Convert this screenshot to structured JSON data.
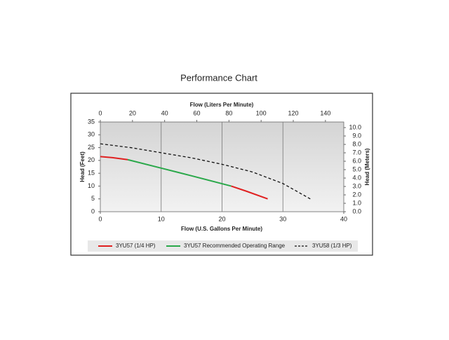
{
  "chart_data": {
    "type": "line",
    "title": "Performance Chart",
    "x_label": "Flow (U.S. Gallons Per Minute)",
    "x2_label": "Flow (Liters Per Minute)",
    "y_label": "Head (Feet)",
    "y2_label": "Head (Meters)",
    "xlim": [
      0,
      40
    ],
    "xticks": [
      0,
      10,
      20,
      30,
      40
    ],
    "x2lim": [
      0,
      151.4
    ],
    "x2ticks": [
      0,
      20,
      40,
      60,
      80,
      100,
      120,
      140
    ],
    "ylim": [
      0,
      35
    ],
    "yticks": [
      0,
      5,
      10,
      15,
      20,
      25,
      30,
      35
    ],
    "y2lim": [
      0,
      10.668
    ],
    "y2ticks": [
      {
        "value": 0,
        "label": "0.0"
      },
      {
        "value": 1,
        "label": "1.0"
      },
      {
        "value": 2,
        "label": "2.0"
      },
      {
        "value": 3,
        "label": "3.0"
      },
      {
        "value": 4,
        "label": "4.0"
      },
      {
        "value": 5,
        "label": "5.0"
      },
      {
        "value": 6,
        "label": "6.0"
      },
      {
        "value": 7,
        "label": "7.0"
      },
      {
        "value": 8,
        "label": "8.0"
      },
      {
        "value": 9,
        "label": "9.0"
      },
      {
        "value": 10,
        "label": "10.0"
      }
    ],
    "grid": true,
    "series": [
      {
        "name": "3YU57 (1/4 HP)",
        "color": "#e02020",
        "dash": false,
        "x": [
          0,
          2,
          4.5,
          10,
          15,
          21.5,
          24,
          27.5
        ],
        "values": [
          21.5,
          21.1,
          20.3,
          null,
          null,
          10,
          8,
          5
        ]
      },
      {
        "name": "3YU57 Recommended Operating Range",
        "color": "#2aa84a",
        "dash": false,
        "x": [
          0,
          2,
          4.5,
          10,
          15,
          21.5,
          24,
          27.5
        ],
        "values": [
          null,
          null,
          20.3,
          17,
          14,
          10,
          null,
          null
        ]
      },
      {
        "name": "3YU58 (1/3 HP)",
        "color": "#111111",
        "dash": true,
        "x": [
          0,
          5,
          10,
          15,
          20,
          25,
          30,
          34.5
        ],
        "values": [
          26.5,
          25,
          23,
          21,
          18.5,
          15.5,
          11,
          5
        ]
      }
    ]
  }
}
